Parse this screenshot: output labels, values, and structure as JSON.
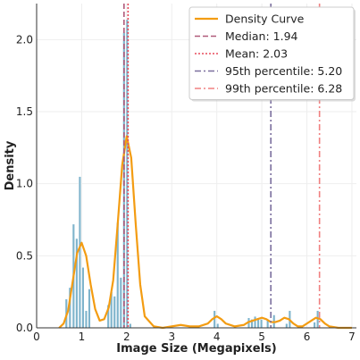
{
  "chart_data": {
    "type": "bar",
    "title": "",
    "xlabel": "Image Size (Megapixels)",
    "ylabel": "Density",
    "xlim": [
      0,
      7.1
    ],
    "ylim": [
      0,
      2.25
    ],
    "xticks": [
      "0",
      "1",
      "2",
      "3",
      "4",
      "5",
      "6",
      "7"
    ],
    "yticks": [
      "0.0",
      "0.5",
      "1.0",
      "1.5",
      "2.0"
    ],
    "grid": true,
    "legend_position": "top-right",
    "histogram": {
      "name": "",
      "bin_width": 0.07,
      "color": "#7fb4cc",
      "bars": [
        {
          "x": 0.66,
          "density": 0.2
        },
        {
          "x": 0.74,
          "density": 0.28
        },
        {
          "x": 0.82,
          "density": 0.72
        },
        {
          "x": 0.89,
          "density": 0.62
        },
        {
          "x": 0.96,
          "density": 1.05
        },
        {
          "x": 1.03,
          "density": 0.42
        },
        {
          "x": 1.1,
          "density": 0.12
        },
        {
          "x": 1.17,
          "density": 0.27
        },
        {
          "x": 1.59,
          "density": 0.16
        },
        {
          "x": 1.66,
          "density": 0.25
        },
        {
          "x": 1.73,
          "density": 0.22
        },
        {
          "x": 1.8,
          "density": 0.73
        },
        {
          "x": 1.87,
          "density": 0.35
        },
        {
          "x": 1.94,
          "density": 2.05
        },
        {
          "x": 2.01,
          "density": 2.14
        },
        {
          "x": 2.08,
          "density": 0.03
        },
        {
          "x": 3.95,
          "density": 0.12
        },
        {
          "x": 4.02,
          "density": 0.03
        },
        {
          "x": 4.71,
          "density": 0.07
        },
        {
          "x": 4.78,
          "density": 0.06
        },
        {
          "x": 4.85,
          "density": 0.08
        },
        {
          "x": 4.92,
          "density": 0.07
        },
        {
          "x": 4.99,
          "density": 0.06
        },
        {
          "x": 5.13,
          "density": 0.06
        },
        {
          "x": 5.27,
          "density": 0.09
        },
        {
          "x": 5.55,
          "density": 0.03
        },
        {
          "x": 5.62,
          "density": 0.12
        },
        {
          "x": 6.17,
          "density": 0.04
        },
        {
          "x": 6.24,
          "density": 0.12
        }
      ]
    },
    "density_curve": {
      "name": "Density Curve",
      "color": "#f39c12",
      "x": [
        0.5,
        0.6,
        0.7,
        0.8,
        0.9,
        1.0,
        1.1,
        1.2,
        1.3,
        1.4,
        1.5,
        1.6,
        1.7,
        1.8,
        1.9,
        2.0,
        2.1,
        2.2,
        2.3,
        2.4,
        2.6,
        2.8,
        3.0,
        3.2,
        3.4,
        3.6,
        3.8,
        3.9,
        4.0,
        4.1,
        4.2,
        4.4,
        4.6,
        4.7,
        4.8,
        4.9,
        5.0,
        5.1,
        5.2,
        5.3,
        5.4,
        5.5,
        5.6,
        5.7,
        5.8,
        5.9,
        6.0,
        6.1,
        6.2,
        6.3,
        6.4,
        6.5,
        6.7,
        7.0
      ],
      "y": [
        0.0,
        0.03,
        0.12,
        0.32,
        0.52,
        0.59,
        0.5,
        0.3,
        0.13,
        0.05,
        0.06,
        0.14,
        0.33,
        0.72,
        1.13,
        1.33,
        1.18,
        0.72,
        0.3,
        0.08,
        0.01,
        0.0,
        0.01,
        0.02,
        0.01,
        0.01,
        0.03,
        0.06,
        0.08,
        0.06,
        0.03,
        0.01,
        0.02,
        0.04,
        0.05,
        0.06,
        0.07,
        0.06,
        0.04,
        0.04,
        0.05,
        0.07,
        0.06,
        0.03,
        0.01,
        0.01,
        0.03,
        0.05,
        0.07,
        0.06,
        0.03,
        0.01,
        0.0,
        0.0
      ]
    },
    "reference_lines": [
      {
        "label": "Median: 1.94",
        "value": 1.94,
        "color": "#b05a7a",
        "style": "dashed"
      },
      {
        "label": "Mean: 2.03",
        "value": 2.03,
        "color": "#e74c5c",
        "style": "dotted"
      },
      {
        "label": "95th percentile: 5.20",
        "value": 5.2,
        "color": "#7b6f9e",
        "style": "dashdot"
      },
      {
        "label": "99th percentile: 6.28",
        "value": 6.28,
        "color": "#f08080",
        "style": "dashdot"
      }
    ]
  }
}
